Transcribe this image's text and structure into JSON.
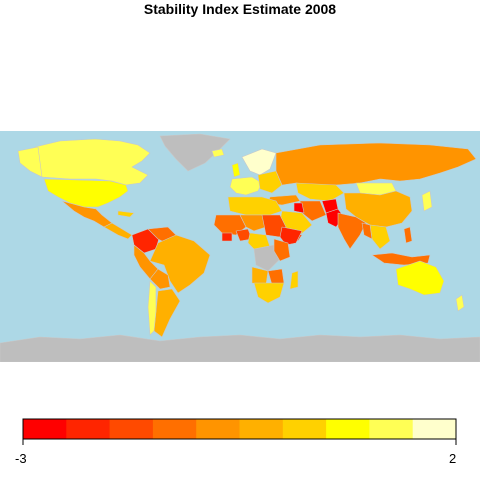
{
  "title": "Stability Index Estimate 2008",
  "legend": {
    "min_label": "-3",
    "max_label": "2",
    "colors": [
      "#ff0000",
      "#ff2500",
      "#ff4a00",
      "#ff6f00",
      "#ff9400",
      "#ffb000",
      "#ffd100",
      "#ffff00",
      "#ffff55",
      "#ffffcc"
    ]
  },
  "map_colors": {
    "ocean": "#add8e6",
    "no_data": "#bebebe",
    "border": "#c8c8c8"
  }
}
